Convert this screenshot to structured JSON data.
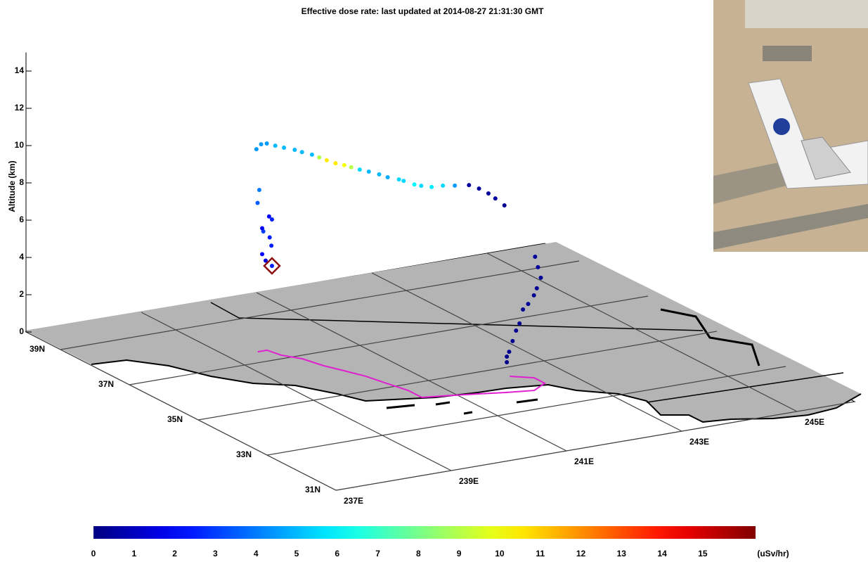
{
  "chart_data": {
    "type": "scatter3d",
    "title": "Effective dose rate: last updated at 2014-08-27 21:31:30 GMT",
    "zlabel": "Altitude (km)",
    "xlim": [
      237,
      246
    ],
    "xticks": [
      {
        "value": 237,
        "label": "237E"
      },
      {
        "value": 239,
        "label": "239E"
      },
      {
        "value": 241,
        "label": "241E"
      },
      {
        "value": 243,
        "label": "243E"
      },
      {
        "value": 245,
        "label": "245E"
      }
    ],
    "ylim": [
      31,
      40
    ],
    "yticks": [
      {
        "value": 31,
        "label": "31N"
      },
      {
        "value": 33,
        "label": "33N"
      },
      {
        "value": 35,
        "label": "35N"
      },
      {
        "value": 37,
        "label": "37N"
      },
      {
        "value": 39,
        "label": "39N"
      }
    ],
    "zlim": [
      0,
      15
    ],
    "zticks": [
      0,
      2,
      4,
      6,
      8,
      10,
      12,
      14
    ],
    "colorbar": {
      "clim": [
        0,
        16.3
      ],
      "ticks": [
        0,
        1,
        2,
        3,
        4,
        5,
        6,
        7,
        8,
        9,
        10,
        11,
        12,
        13,
        14,
        15
      ],
      "unit": "(uSv/hr)",
      "colormap": "jet"
    },
    "points": {
      "lon": [
        239.75,
        239.64,
        239.58,
        239.74,
        239.71,
        239.6,
        239.58,
        239.75,
        239.7,
        239.5,
        239.53,
        239.51,
        239.55,
        239.6,
        239.67,
        239.75,
        239.84,
        239.9,
        239.99,
        240.05,
        240.12,
        240.19,
        240.27,
        240.33,
        240.4,
        240.48,
        240.57,
        240.64,
        240.74,
        240.78,
        240.87,
        240.93,
        241.02,
        241.12,
        241.22,
        241.34,
        241.43,
        241.51,
        241.57,
        241.65,
        242.17,
        242.22,
        242.27,
        242.2,
        242.15,
        242.05,
        241.96,
        241.9,
        241.84,
        241.78,
        241.72,
        241.68,
        241.68
      ],
      "lat": [
        37.46,
        37.46,
        37.46,
        37.46,
        37.46,
        37.46,
        37.46,
        37.46,
        37.46,
        37.46,
        37.46,
        37.51,
        37.44,
        37.36,
        37.23,
        37.11,
        36.95,
        36.84,
        36.7,
        36.59,
        36.49,
        36.35,
        36.23,
        36.13,
        36.0,
        35.87,
        35.72,
        35.59,
        35.43,
        35.36,
        35.2,
        35.1,
        34.95,
        34.79,
        34.61,
        34.4,
        34.26,
        34.12,
        34.02,
        33.89,
        33.87,
        33.87,
        33.87,
        33.87,
        33.87,
        33.87,
        33.87,
        33.87,
        33.87,
        33.87,
        33.87,
        33.87,
        33.87
      ],
      "alt": [
        4.49,
        4.83,
        5.21,
        5.58,
        6.04,
        6.42,
        6.6,
        6.98,
        7.17,
        8.0,
        8.68,
        10.83,
        11.14,
        11.23,
        11.2,
        11.16,
        11.15,
        11.1,
        11.05,
        10.97,
        10.88,
        10.81,
        10.78,
        10.73,
        10.69,
        10.66,
        10.61,
        10.54,
        10.52,
        10.49,
        10.4,
        10.39,
        10.42,
        10.59,
        10.71,
        10.87,
        10.77,
        10.6,
        10.39,
        10.1,
        7.09,
        6.5,
        5.91,
        5.38,
        5.03,
        4.62,
        4.37,
        3.65,
        3.3,
        2.77,
        2.23,
        1.99,
        1.69
      ],
      "dose": [
        2.5,
        1.5,
        2,
        2.5,
        2.5,
        3,
        2,
        2.5,
        2,
        3.5,
        4,
        4.5,
        4.5,
        4.5,
        5,
        5,
        5,
        5,
        5,
        9,
        10.5,
        10.5,
        10,
        9,
        5.5,
        5,
        5,
        4.8,
        5.5,
        5.5,
        6,
        5.5,
        5.8,
        5.5,
        4.5,
        0.5,
        0.5,
        0.5,
        0.5,
        0.3,
        0.4,
        0.4,
        0.4,
        0.3,
        0.3,
        0.4,
        0.3,
        0.3,
        0.3,
        0.3,
        0.3,
        0.2,
        0.2
      ]
    },
    "track": {
      "color": "#e020d0",
      "lon": [
        239.51,
        239.67,
        239.73,
        239.91,
        240.01,
        240.15,
        240.29,
        240.38,
        240.48,
        240.48,
        240.79,
        241.3,
        241.7,
        242.12,
        242.44,
        242.44,
        242.16
      ],
      "lat": [
        37.47,
        37.47,
        37.15,
        36.85,
        36.4,
        36.03,
        35.64,
        35.19,
        34.73,
        34.33,
        34.24,
        34.07,
        33.93,
        33.81,
        34.04,
        34.35,
        34.59
      ]
    },
    "marker": {
      "color": "#8b1010",
      "lon": 239.75,
      "lat": 37.46,
      "alt": 4.49
    }
  }
}
